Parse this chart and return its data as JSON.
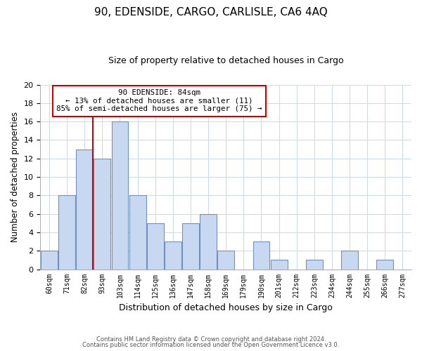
{
  "title": "90, EDENSIDE, CARGO, CARLISLE, CA6 4AQ",
  "subtitle": "Size of property relative to detached houses in Cargo",
  "xlabel": "Distribution of detached houses by size in Cargo",
  "ylabel": "Number of detached properties",
  "bar_labels": [
    "60sqm",
    "71sqm",
    "82sqm",
    "93sqm",
    "103sqm",
    "114sqm",
    "125sqm",
    "136sqm",
    "147sqm",
    "158sqm",
    "169sqm",
    "179sqm",
    "190sqm",
    "201sqm",
    "212sqm",
    "223sqm",
    "234sqm",
    "244sqm",
    "255sqm",
    "266sqm",
    "277sqm"
  ],
  "bar_values": [
    2,
    8,
    13,
    12,
    16,
    8,
    5,
    3,
    5,
    6,
    2,
    0,
    3,
    1,
    0,
    1,
    0,
    2,
    0,
    1,
    0
  ],
  "bar_color": "#c8d8f0",
  "bar_edge_color": "#7090c0",
  "property_line_index": 2,
  "ylim": [
    0,
    20
  ],
  "yticks": [
    0,
    2,
    4,
    6,
    8,
    10,
    12,
    14,
    16,
    18,
    20
  ],
  "annotation_title": "90 EDENSIDE: 84sqm",
  "annotation_line1": "← 13% of detached houses are smaller (11)",
  "annotation_line2": "85% of semi-detached houses are larger (75) →",
  "line_color": "#cc0000",
  "footer1": "Contains HM Land Registry data © Crown copyright and database right 2024.",
  "footer2": "Contains public sector information licensed under the Open Government Licence v3.0.",
  "background_color": "#ffffff",
  "grid_color": "#c8d8ee"
}
